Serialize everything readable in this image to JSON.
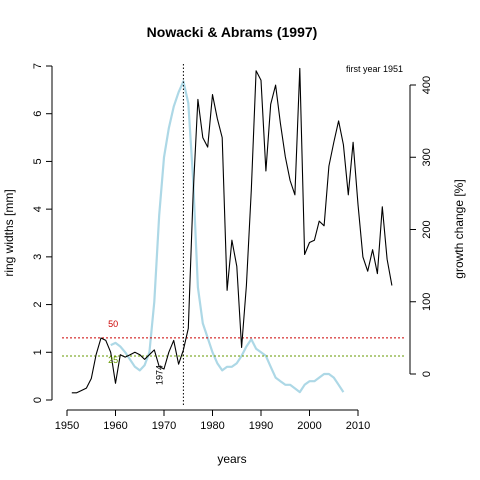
{
  "chart_data": {
    "type": "line",
    "title": "Nowacki & Abrams (1997)",
    "annotation_first_year": "first year 1951",
    "xlabel": "years",
    "ylabel_left": "ring widths [mm]",
    "ylabel_right": "growth change [%]",
    "xlim": [
      1950,
      2020
    ],
    "ylim_left": [
      0,
      7
    ],
    "ylim_right": [
      -40,
      420
    ],
    "x_ticks": [
      1950,
      1960,
      1970,
      1980,
      1990,
      2000,
      2010
    ],
    "y_left_ticks": [
      0,
      1,
      2,
      3,
      4,
      5,
      6,
      7
    ],
    "y_right_ticks": [
      0,
      100,
      200,
      300,
      400
    ],
    "release_year": 1974,
    "release_year_label": "1974",
    "threshold_lines": [
      {
        "label": "50",
        "value": 50,
        "color": "#cc0000"
      },
      {
        "label": "25",
        "value": 25,
        "color": "#669900"
      }
    ],
    "series": [
      {
        "name": "ring widths",
        "axis": "left",
        "color": "#000000",
        "x": [
          1951,
          1952,
          1953,
          1954,
          1955,
          1956,
          1957,
          1958,
          1959,
          1960,
          1961,
          1962,
          1963,
          1964,
          1965,
          1966,
          1967,
          1968,
          1969,
          1970,
          1971,
          1972,
          1973,
          1974,
          1975,
          1976,
          1977,
          1978,
          1979,
          1980,
          1981,
          1982,
          1983,
          1984,
          1985,
          1986,
          1987,
          1988,
          1989,
          1990,
          1991,
          1992,
          1993,
          1994,
          1995,
          1996,
          1997,
          1998,
          1999,
          2000,
          2001,
          2002,
          2003,
          2004,
          2005,
          2006,
          2007,
          2008,
          2009,
          2010,
          2011,
          2012,
          2013,
          2014,
          2015,
          2016,
          2017
        ],
        "values": [
          0.15,
          0.15,
          0.2,
          0.25,
          0.45,
          0.95,
          1.3,
          1.25,
          1.0,
          0.35,
          0.95,
          0.9,
          0.95,
          1.0,
          0.95,
          0.85,
          0.95,
          1.05,
          0.7,
          0.65,
          1.0,
          1.25,
          0.75,
          1.05,
          1.5,
          4.3,
          6.3,
          5.5,
          5.3,
          6.4,
          5.9,
          5.5,
          2.3,
          3.35,
          2.8,
          1.1,
          2.4,
          4.4,
          6.9,
          6.7,
          4.8,
          6.2,
          6.6,
          5.8,
          5.1,
          4.6,
          4.3,
          6.95,
          3.05,
          3.3,
          3.35,
          3.75,
          3.65,
          4.9,
          5.4,
          5.85,
          5.35,
          4.3,
          5.4,
          4.1,
          3.0,
          2.7,
          3.15,
          2.65,
          4.05,
          2.95,
          2.4
        ]
      },
      {
        "name": "growth change",
        "axis": "right",
        "color": "#add8e6",
        "x": [
          1959,
          1960,
          1961,
          1962,
          1963,
          1964,
          1965,
          1966,
          1967,
          1968,
          1969,
          1970,
          1971,
          1972,
          1973,
          1974,
          1975,
          1976,
          1977,
          1978,
          1979,
          1980,
          1981,
          1982,
          1983,
          1984,
          1985,
          1986,
          1987,
          1988,
          1989,
          1990,
          1991,
          1992,
          1993,
          1994,
          1995,
          1996,
          1997,
          1998,
          1999,
          2000,
          2001,
          2002,
          2003,
          2004,
          2005,
          2006,
          2007
        ],
        "values": [
          40,
          43,
          38,
          30,
          20,
          10,
          5,
          12,
          30,
          100,
          220,
          300,
          340,
          370,
          390,
          405,
          375,
          270,
          120,
          70,
          50,
          30,
          15,
          5,
          10,
          10,
          15,
          25,
          38,
          48,
          35,
          30,
          25,
          10,
          -5,
          -10,
          -15,
          -15,
          -20,
          -25,
          -15,
          -10,
          -10,
          -5,
          0,
          0,
          -5,
          -15,
          -25
        ]
      }
    ]
  }
}
